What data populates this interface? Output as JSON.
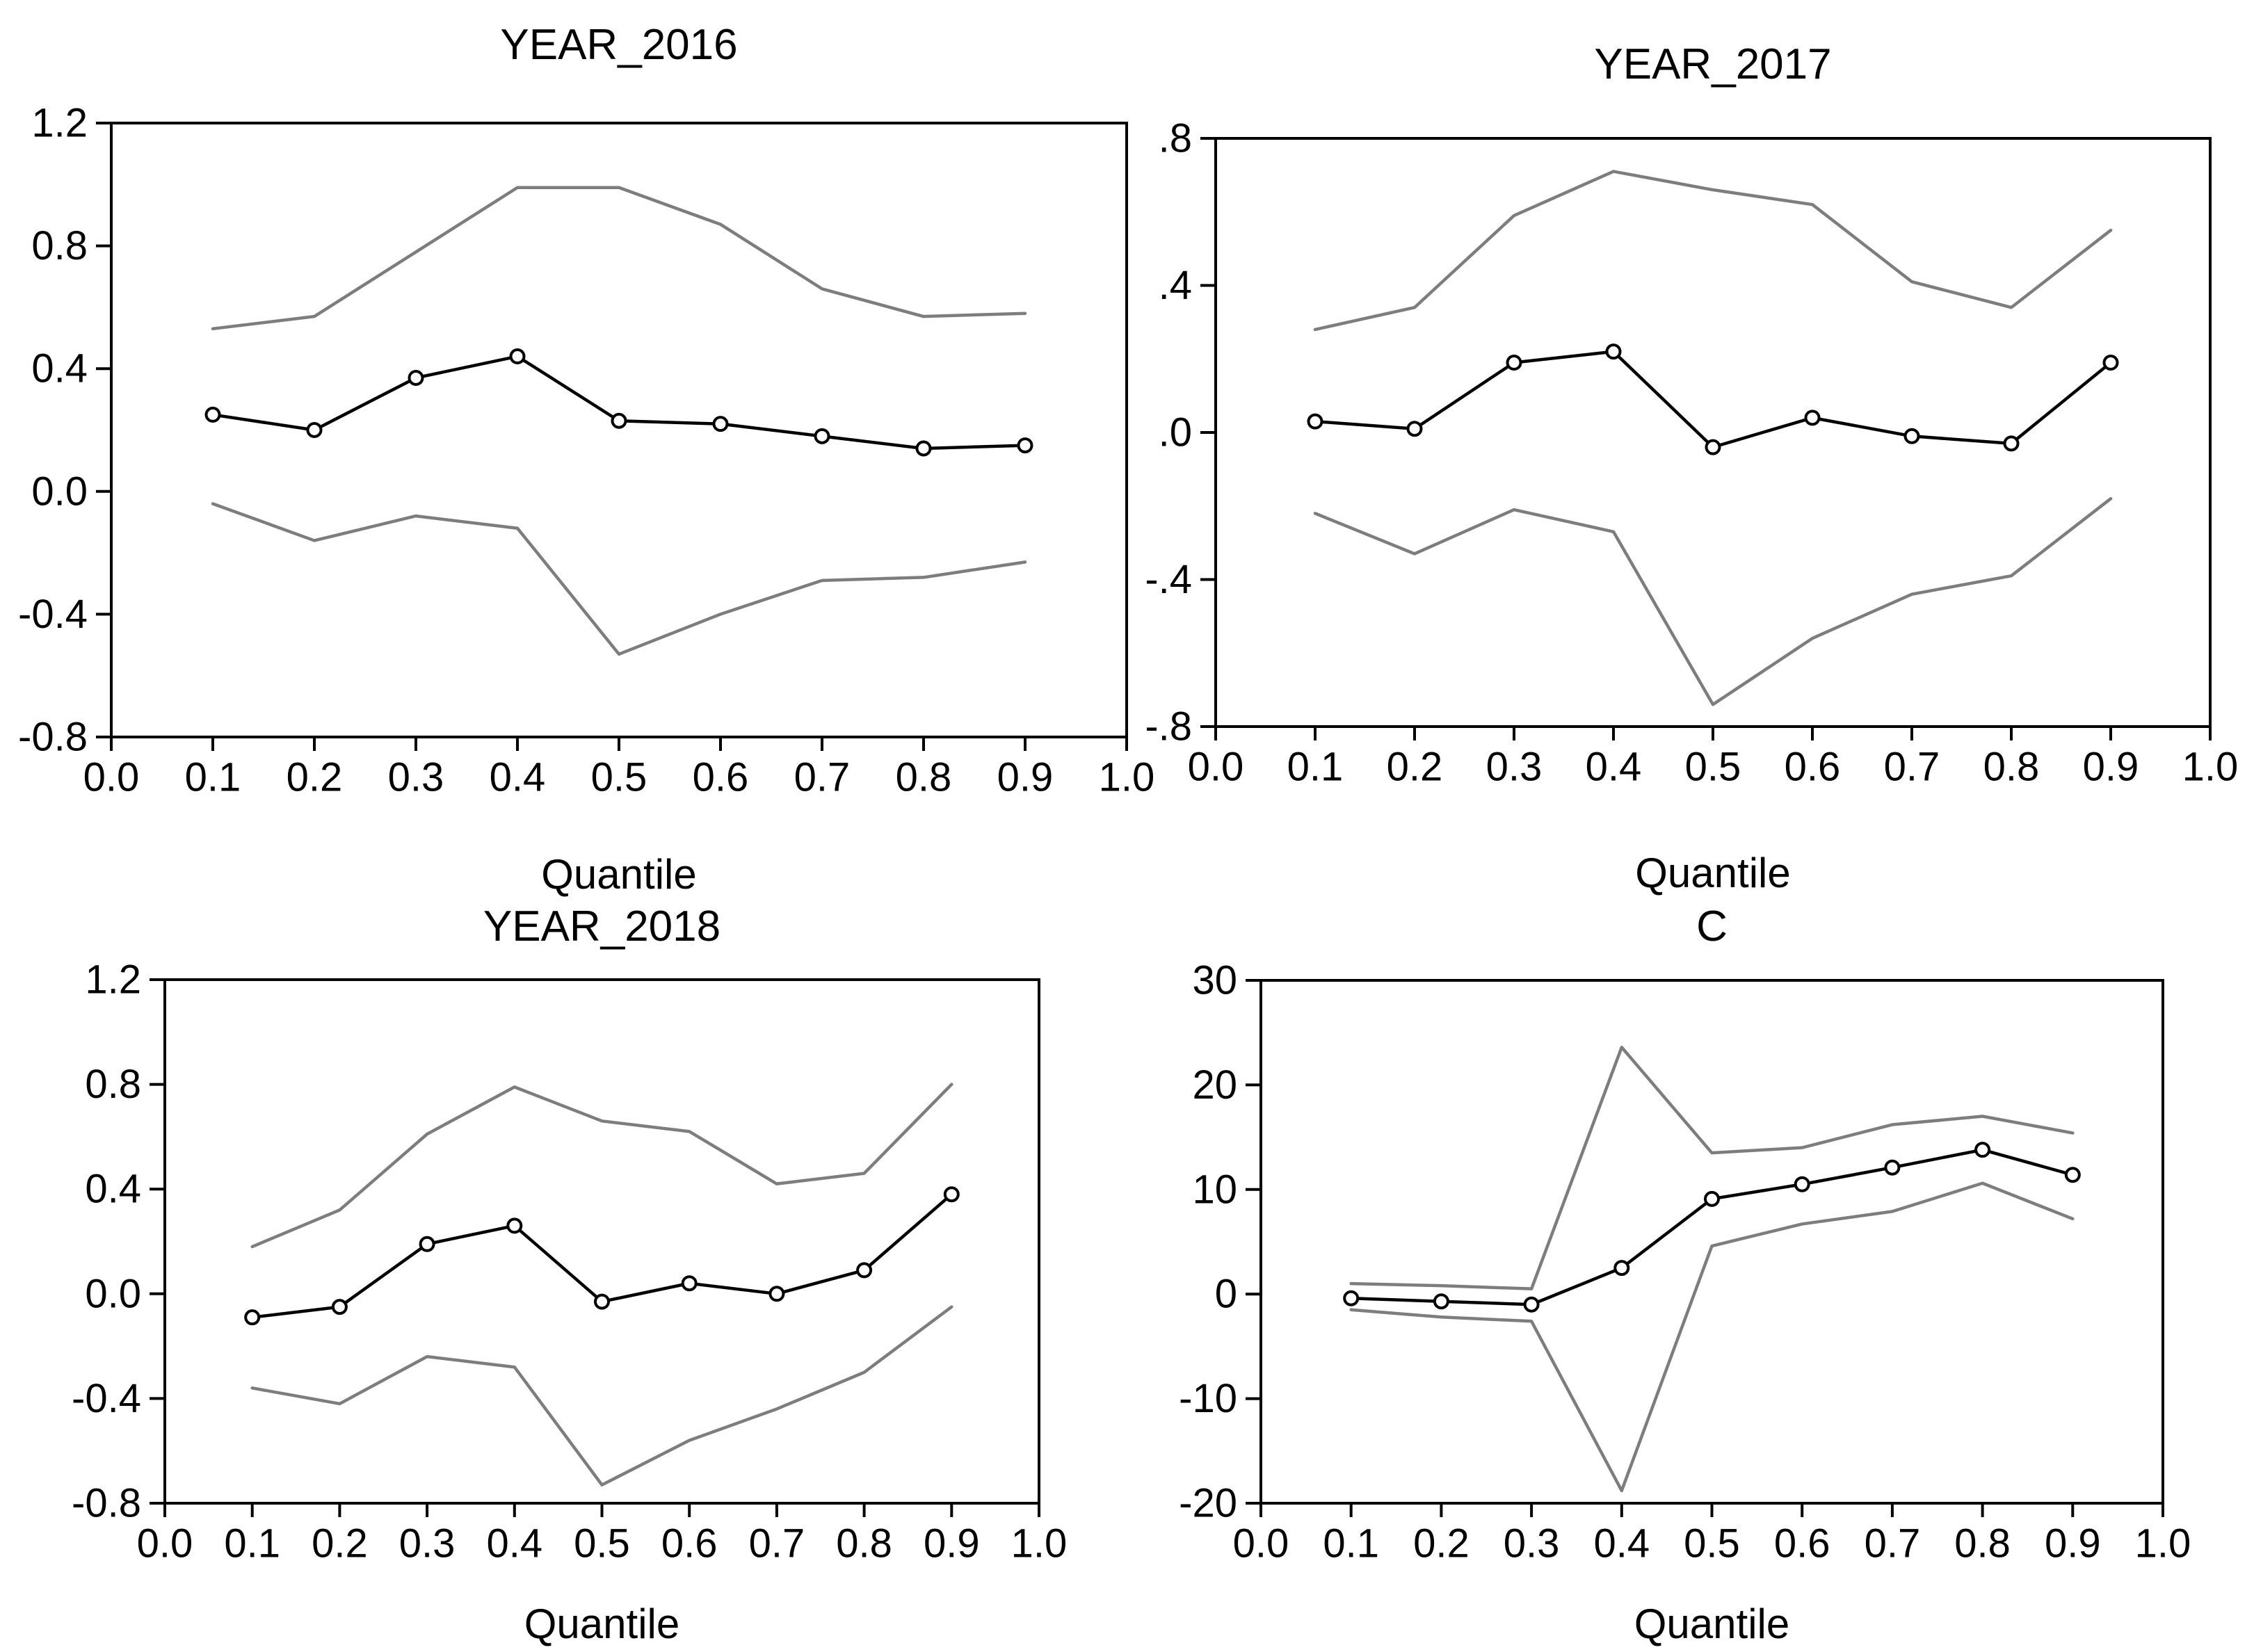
{
  "colors": {
    "coefficient_line": "#000000",
    "confidence_band": "#7d7d7d",
    "axis": "#000000",
    "marker_fill": "#ffffff",
    "background": "#ffffff"
  },
  "chart_data": [
    {
      "type": "line",
      "title": "YEAR_2016",
      "xlabel": "Quantile",
      "ylabel": "",
      "x": [
        0.1,
        0.2,
        0.3,
        0.4,
        0.5,
        0.6,
        0.7,
        0.8,
        0.9
      ],
      "series": [
        {
          "name": "coefficient",
          "color_role": "coefficient_line",
          "markers": true,
          "values": [
            0.25,
            0.2,
            0.37,
            0.44,
            0.23,
            0.22,
            0.18,
            0.14,
            0.15
          ]
        },
        {
          "name": "upper-confidence-band",
          "color_role": "confidence_band",
          "markers": false,
          "values": [
            0.53,
            0.57,
            0.78,
            0.99,
            0.99,
            0.87,
            0.66,
            0.57,
            0.58
          ]
        },
        {
          "name": "lower-confidence-band",
          "color_role": "confidence_band",
          "markers": false,
          "values": [
            -0.04,
            -0.16,
            -0.08,
            -0.12,
            -0.53,
            -0.4,
            -0.29,
            -0.28,
            -0.23
          ]
        }
      ],
      "xlim": [
        0.0,
        1.0
      ],
      "ylim": [
        -0.8,
        1.2
      ],
      "xticks": {
        "values": [
          0.0,
          0.1,
          0.2,
          0.3,
          0.4,
          0.5,
          0.6,
          0.7,
          0.8,
          0.9,
          1.0
        ],
        "labels": [
          "0.0",
          "0.1",
          "0.2",
          "0.3",
          "0.4",
          "0.5",
          "0.6",
          "0.7",
          "0.8",
          "0.9",
          "1.0"
        ]
      },
      "yticks": {
        "values": [
          1.2,
          0.8,
          0.4,
          0.0,
          -0.4,
          -0.8
        ],
        "labels": [
          "1.2",
          "0.8",
          "0.4",
          "0.0",
          "-0.4",
          "-0.8"
        ]
      },
      "grid": false,
      "legend": "none"
    },
    {
      "type": "line",
      "title": "YEAR_2017",
      "xlabel": "Quantile",
      "ylabel": "",
      "x": [
        0.1,
        0.2,
        0.3,
        0.4,
        0.5,
        0.6,
        0.7,
        0.8,
        0.9
      ],
      "series": [
        {
          "name": "coefficient",
          "color_role": "coefficient_line",
          "markers": true,
          "values": [
            0.03,
            0.01,
            0.19,
            0.22,
            -0.04,
            0.04,
            -0.01,
            -0.03,
            0.19
          ]
        },
        {
          "name": "upper-confidence-band",
          "color_role": "confidence_band",
          "markers": false,
          "values": [
            0.28,
            0.34,
            0.59,
            0.71,
            0.66,
            0.62,
            0.41,
            0.34,
            0.55
          ]
        },
        {
          "name": "lower-confidence-band",
          "color_role": "confidence_band",
          "markers": false,
          "values": [
            -0.22,
            -0.33,
            -0.21,
            -0.27,
            -0.74,
            -0.56,
            -0.44,
            -0.39,
            -0.18
          ]
        }
      ],
      "xlim": [
        0.0,
        1.0
      ],
      "ylim": [
        -0.8,
        0.8
      ],
      "xticks": {
        "values": [
          0.0,
          0.1,
          0.2,
          0.3,
          0.4,
          0.5,
          0.6,
          0.7,
          0.8,
          0.9,
          1.0
        ],
        "labels": [
          "0.0",
          "0.1",
          "0.2",
          "0.3",
          "0.4",
          "0.5",
          "0.6",
          "0.7",
          "0.8",
          "0.9",
          "1.0"
        ]
      },
      "yticks": {
        "values": [
          0.8,
          0.4,
          0.0,
          -0.4,
          -0.8
        ],
        "labels": [
          ".8",
          ".4",
          ".0",
          "-.4",
          "-.8"
        ]
      },
      "grid": false,
      "legend": "none"
    },
    {
      "type": "line",
      "title": "YEAR_2018",
      "xlabel": "Quantile",
      "ylabel": "",
      "x": [
        0.1,
        0.2,
        0.3,
        0.4,
        0.5,
        0.6,
        0.7,
        0.8,
        0.9
      ],
      "series": [
        {
          "name": "coefficient",
          "color_role": "coefficient_line",
          "markers": true,
          "values": [
            -0.09,
            -0.05,
            0.19,
            0.26,
            -0.03,
            0.04,
            0.0,
            0.09,
            0.38
          ]
        },
        {
          "name": "upper-confidence-band",
          "color_role": "confidence_band",
          "markers": false,
          "values": [
            0.18,
            0.32,
            0.61,
            0.79,
            0.66,
            0.62,
            0.42,
            0.46,
            0.8
          ]
        },
        {
          "name": "lower-confidence-band",
          "color_role": "confidence_band",
          "markers": false,
          "values": [
            -0.36,
            -0.42,
            -0.24,
            -0.28,
            -0.73,
            -0.56,
            -0.44,
            -0.3,
            -0.05
          ]
        }
      ],
      "xlim": [
        0.0,
        1.0
      ],
      "ylim": [
        -0.8,
        1.2
      ],
      "xticks": {
        "values": [
          0.0,
          0.1,
          0.2,
          0.3,
          0.4,
          0.5,
          0.6,
          0.7,
          0.8,
          0.9,
          1.0
        ],
        "labels": [
          "0.0",
          "0.1",
          "0.2",
          "0.3",
          "0.4",
          "0.5",
          "0.6",
          "0.7",
          "0.8",
          "0.9",
          "1.0"
        ]
      },
      "yticks": {
        "values": [
          1.2,
          0.8,
          0.4,
          0.0,
          -0.4,
          -0.8
        ],
        "labels": [
          "1.2",
          "0.8",
          "0.4",
          "0.0",
          "-0.4",
          "-0.8"
        ]
      },
      "grid": false,
      "legend": "none"
    },
    {
      "type": "line",
      "title": "C",
      "xlabel": "Quantile",
      "ylabel": "",
      "x": [
        0.1,
        0.2,
        0.3,
        0.4,
        0.5,
        0.6,
        0.7,
        0.8,
        0.9
      ],
      "series": [
        {
          "name": "coefficient",
          "color_role": "coefficient_line",
          "markers": true,
          "values": [
            -0.4,
            -0.7,
            -1.0,
            2.5,
            9.1,
            10.5,
            12.1,
            13.8,
            11.4
          ]
        },
        {
          "name": "upper-confidence-band",
          "color_role": "confidence_band",
          "markers": false,
          "values": [
            1.0,
            0.8,
            0.5,
            23.6,
            13.5,
            14.0,
            16.2,
            17.0,
            15.4
          ]
        },
        {
          "name": "lower-confidence-band",
          "color_role": "confidence_band",
          "markers": false,
          "values": [
            -1.5,
            -2.2,
            -2.6,
            -18.8,
            4.6,
            6.7,
            7.9,
            10.6,
            7.2
          ]
        }
      ],
      "xlim": [
        0.0,
        1.0
      ],
      "ylim": [
        -20,
        30
      ],
      "xticks": {
        "values": [
          0.0,
          0.1,
          0.2,
          0.3,
          0.4,
          0.5,
          0.6,
          0.7,
          0.8,
          0.9,
          1.0
        ],
        "labels": [
          "0.0",
          "0.1",
          "0.2",
          "0.3",
          "0.4",
          "0.5",
          "0.6",
          "0.7",
          "0.8",
          "0.9",
          "1.0"
        ]
      },
      "yticks": {
        "values": [
          30,
          20,
          10,
          0,
          -10,
          -20
        ],
        "labels": [
          "30",
          "20",
          "10",
          "0",
          "-10",
          "-20"
        ]
      },
      "grid": false,
      "legend": "none"
    }
  ]
}
